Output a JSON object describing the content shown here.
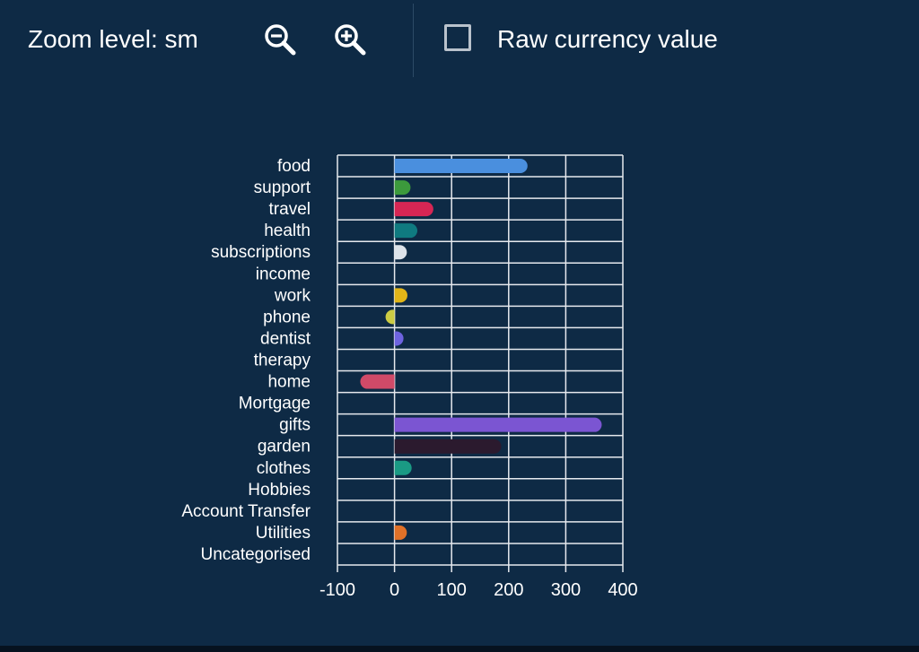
{
  "toolbar": {
    "zoom_label": "Zoom level: sm",
    "zoom_out_icon": "zoom-out-icon",
    "zoom_in_icon": "zoom-in-icon",
    "raw_currency_label": "Raw currency value",
    "raw_currency_checked": false
  },
  "colors": {
    "background": "#0e2a45",
    "grid": "#e6e9ee",
    "text": "#ffffff"
  },
  "chart_data": {
    "type": "bar",
    "orientation": "horizontal",
    "categories": [
      "food",
      "support",
      "travel",
      "health",
      "subscriptions",
      "income",
      "work",
      "phone",
      "dentist",
      "therapy",
      "home",
      "Mortgage",
      "gifts",
      "garden",
      "clothes",
      "Hobbies",
      "Account Transfer",
      "Utilities",
      "Uncategorised"
    ],
    "values": [
      233,
      28,
      68,
      40,
      18,
      0,
      20,
      -5,
      3,
      0,
      -60,
      0,
      363,
      187,
      30,
      0,
      0,
      18,
      0
    ],
    "bar_colors": [
      "#4a8fde",
      "#3c9a3c",
      "#d72654",
      "#0f7a80",
      "#dde3ea",
      null,
      "#e2b518",
      "#cccc44",
      "#6e63e0",
      null,
      "#d04a68",
      null,
      "#7b55d2",
      "#2b1a2e",
      "#1a9a84",
      null,
      null,
      "#e07128",
      null
    ],
    "xlim": [
      -100,
      400
    ],
    "x_ticks": [
      "-100",
      "0",
      "100",
      "200",
      "300",
      "400"
    ],
    "grid": true,
    "title": "",
    "xlabel": "",
    "ylabel": ""
  }
}
